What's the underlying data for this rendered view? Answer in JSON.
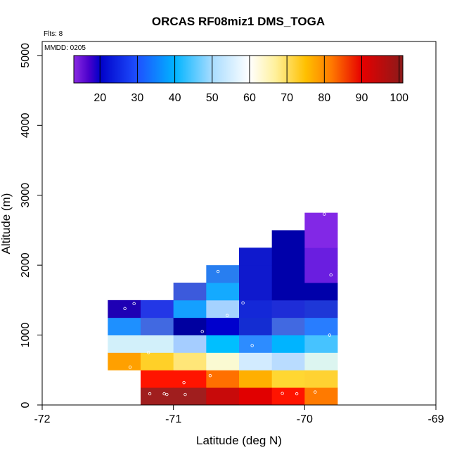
{
  "chart_data": {
    "type": "heatmap",
    "title": "ORCAS RF08miz1 DMS_TOGA",
    "xlabel": "Latitude (deg N)",
    "ylabel": "Altitude (m)",
    "xlim": [
      -72,
      -69
    ],
    "ylim": [
      0,
      5200
    ],
    "x_ticks": [
      -72,
      -71,
      -70,
      -69
    ],
    "y_ticks": [
      0,
      1000,
      2000,
      3000,
      4000,
      5000
    ],
    "annotations": {
      "flights": "Flts: 8",
      "date": "MMDD: 0205"
    },
    "colorbar": {
      "range": [
        13,
        101
      ],
      "ticks": [
        20,
        30,
        40,
        50,
        60,
        70,
        80,
        90,
        100
      ],
      "stops": [
        {
          "v": 13,
          "color": "#8a2be2"
        },
        {
          "v": 17,
          "color": "#4b00cc"
        },
        {
          "v": 20,
          "color": "#0000c8"
        },
        {
          "v": 30,
          "color": "#1e50ff"
        },
        {
          "v": 40,
          "color": "#00b4ff"
        },
        {
          "v": 50,
          "color": "#a8dcff"
        },
        {
          "v": 60,
          "color": "#ffffff"
        },
        {
          "v": 67,
          "color": "#fff09a"
        },
        {
          "v": 75,
          "color": "#ffc000"
        },
        {
          "v": 82,
          "color": "#ff7800"
        },
        {
          "v": 90,
          "color": "#e60000"
        },
        {
          "v": 101,
          "color": "#8b1a1a"
        }
      ]
    },
    "cell_size": {
      "lat": 0.25,
      "alt": 250
    },
    "cells": [
      {
        "lat": -71.375,
        "alt": 625,
        "value": 78,
        "color": "#ffa000"
      },
      {
        "lat": -71.375,
        "alt": 875,
        "value": 55,
        "color": "#d2f0fa"
      },
      {
        "lat": -71.375,
        "alt": 1125,
        "value": 37,
        "color": "#1e90ff"
      },
      {
        "lat": -71.375,
        "alt": 1375,
        "value": 22,
        "color": "#1e00b4"
      },
      {
        "lat": -71.125,
        "alt": 125,
        "value": 96,
        "color": "#a01e1e"
      },
      {
        "lat": -71.125,
        "alt": 375,
        "value": 90,
        "color": "#ff1400"
      },
      {
        "lat": -71.125,
        "alt": 625,
        "value": 74,
        "color": "#ffd028"
      },
      {
        "lat": -71.125,
        "alt": 875,
        "value": 55,
        "color": "#d2f0fa"
      },
      {
        "lat": -71.125,
        "alt": 1125,
        "value": 32,
        "color": "#4169e1"
      },
      {
        "lat": -71.125,
        "alt": 1375,
        "value": 28,
        "color": "#2337e6"
      },
      {
        "lat": -70.875,
        "alt": 125,
        "value": 96,
        "color": "#a01e1e"
      },
      {
        "lat": -70.875,
        "alt": 375,
        "value": 90,
        "color": "#ff1400"
      },
      {
        "lat": -70.875,
        "alt": 625,
        "value": 70,
        "color": "#ffe678"
      },
      {
        "lat": -70.875,
        "alt": 875,
        "value": 49,
        "color": "#a5cdff"
      },
      {
        "lat": -70.875,
        "alt": 1125,
        "value": 20,
        "color": "#0000a0"
      },
      {
        "lat": -70.875,
        "alt": 1375,
        "value": 40,
        "color": "#14a0ff"
      },
      {
        "lat": -70.875,
        "alt": 1625,
        "value": 32,
        "color": "#3c5adc"
      },
      {
        "lat": -70.625,
        "alt": 125,
        "value": 94,
        "color": "#c80a0a"
      },
      {
        "lat": -70.625,
        "alt": 375,
        "value": 83,
        "color": "#ff7000"
      },
      {
        "lat": -70.625,
        "alt": 625,
        "value": 63,
        "color": "#fafad2"
      },
      {
        "lat": -70.625,
        "alt": 875,
        "value": 42,
        "color": "#00bfff"
      },
      {
        "lat": -70.625,
        "alt": 1125,
        "value": 22,
        "color": "#0000cd"
      },
      {
        "lat": -70.625,
        "alt": 1375,
        "value": 48,
        "color": "#a5d2ff"
      },
      {
        "lat": -70.625,
        "alt": 1625,
        "value": 42,
        "color": "#14aaff"
      },
      {
        "lat": -70.625,
        "alt": 1875,
        "value": 36,
        "color": "#287ef0"
      },
      {
        "lat": -70.375,
        "alt": 125,
        "value": 92,
        "color": "#e10000"
      },
      {
        "lat": -70.375,
        "alt": 375,
        "value": 77,
        "color": "#ffaf00"
      },
      {
        "lat": -70.375,
        "alt": 625,
        "value": 53,
        "color": "#d2ebff"
      },
      {
        "lat": -70.375,
        "alt": 875,
        "value": 36,
        "color": "#2d8cff"
      },
      {
        "lat": -70.375,
        "alt": 1125,
        "value": 26,
        "color": "#142dd2"
      },
      {
        "lat": -70.375,
        "alt": 1375,
        "value": 26,
        "color": "#1428d7"
      },
      {
        "lat": -70.375,
        "alt": 1625,
        "value": 25,
        "color": "#0f19cd"
      },
      {
        "lat": -70.375,
        "alt": 1875,
        "value": 25,
        "color": "#0f19cd"
      },
      {
        "lat": -70.375,
        "alt": 2125,
        "value": 25,
        "color": "#0f19cd"
      },
      {
        "lat": -70.125,
        "alt": 125,
        "value": 90,
        "color": "#ff1400"
      },
      {
        "lat": -70.125,
        "alt": 375,
        "value": 73,
        "color": "#ffd732"
      },
      {
        "lat": -70.125,
        "alt": 625,
        "value": 50,
        "color": "#b9dcff"
      },
      {
        "lat": -70.125,
        "alt": 875,
        "value": 41,
        "color": "#00b4ff"
      },
      {
        "lat": -70.125,
        "alt": 1125,
        "value": 31,
        "color": "#4169e1"
      },
      {
        "lat": -70.125,
        "alt": 1375,
        "value": 26,
        "color": "#1e2dd7"
      },
      {
        "lat": -70.125,
        "alt": 1625,
        "value": 20,
        "color": "#0000aa"
      },
      {
        "lat": -70.125,
        "alt": 1875,
        "value": 20,
        "color": "#0000aa"
      },
      {
        "lat": -70.125,
        "alt": 2125,
        "value": 20,
        "color": "#0000aa"
      },
      {
        "lat": -70.125,
        "alt": 2375,
        "value": 20,
        "color": "#0000aa"
      },
      {
        "lat": -69.875,
        "alt": 125,
        "value": 83,
        "color": "#ff7a00"
      },
      {
        "lat": -69.875,
        "alt": 375,
        "value": 74,
        "color": "#ffd232"
      },
      {
        "lat": -69.875,
        "alt": 625,
        "value": 57,
        "color": "#dcf5f0"
      },
      {
        "lat": -69.875,
        "alt": 875,
        "value": 44,
        "color": "#46c3ff"
      },
      {
        "lat": -69.875,
        "alt": 1125,
        "value": 35,
        "color": "#287dff"
      },
      {
        "lat": -69.875,
        "alt": 1375,
        "value": 27,
        "color": "#1e37d7"
      },
      {
        "lat": -69.875,
        "alt": 1625,
        "value": 20,
        "color": "#0000aa"
      },
      {
        "lat": -69.875,
        "alt": 1875,
        "value": 16,
        "color": "#6a1ee0"
      },
      {
        "lat": -69.875,
        "alt": 2125,
        "value": 16,
        "color": "#6a1ee0"
      },
      {
        "lat": -69.875,
        "alt": 2375,
        "value": 14,
        "color": "#8228e6"
      },
      {
        "lat": -69.875,
        "alt": 2625,
        "value": 14,
        "color": "#8228e6"
      }
    ],
    "samples": [
      {
        "lat": -71.3,
        "alt": 1450
      },
      {
        "lat": -71.37,
        "alt": 1380
      },
      {
        "lat": -71.33,
        "alt": 540
      },
      {
        "lat": -71.19,
        "alt": 750
      },
      {
        "lat": -71.18,
        "alt": 160
      },
      {
        "lat": -71.07,
        "alt": 160
      },
      {
        "lat": -71.05,
        "alt": 150
      },
      {
        "lat": -70.92,
        "alt": 320
      },
      {
        "lat": -70.91,
        "alt": 150
      },
      {
        "lat": -70.78,
        "alt": 1050
      },
      {
        "lat": -70.72,
        "alt": 420
      },
      {
        "lat": -70.66,
        "alt": 1910
      },
      {
        "lat": -70.59,
        "alt": 1280
      },
      {
        "lat": -70.47,
        "alt": 1460
      },
      {
        "lat": -70.4,
        "alt": 850
      },
      {
        "lat": -70.17,
        "alt": 165
      },
      {
        "lat": -70.06,
        "alt": 160
      },
      {
        "lat": -69.92,
        "alt": 185
      },
      {
        "lat": -69.85,
        "alt": 2730
      },
      {
        "lat": -69.8,
        "alt": 1860
      },
      {
        "lat": -69.81,
        "alt": 1000
      }
    ]
  }
}
